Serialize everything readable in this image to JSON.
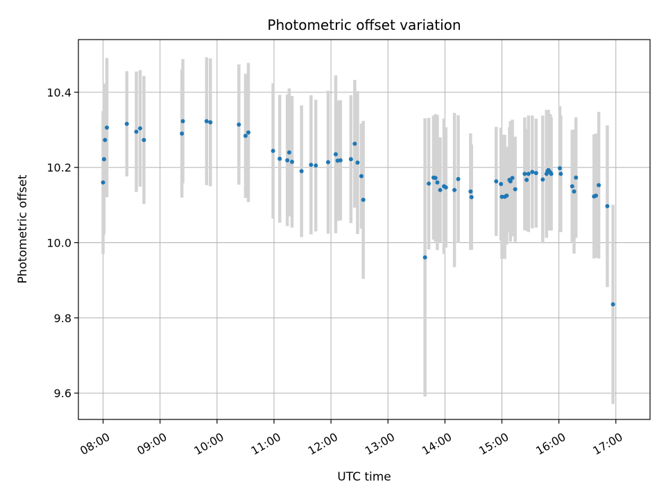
{
  "chart_data": {
    "type": "scatter",
    "title": "Photometric offset variation",
    "xlabel": "UTC time",
    "ylabel": "Photometric offset",
    "xlim": [
      "07:34",
      "17:36"
    ],
    "ylim": [
      9.53,
      10.54
    ],
    "grid": true,
    "x_ticks": [
      "08:00",
      "09:00",
      "10:00",
      "11:00",
      "12:00",
      "13:00",
      "14:00",
      "15:00",
      "16:00",
      "17:00"
    ],
    "y_ticks": [
      9.6,
      9.8,
      10.0,
      10.2,
      10.4
    ],
    "y_tick_labels": [
      "9.6",
      "9.8",
      "10.0",
      "10.2",
      "10.4"
    ],
    "colors": {
      "point": "#1f77b4",
      "errorbar": "#d3d3d3",
      "grid": "#b0b0b0"
    },
    "x": [
      "08:00",
      "08:01",
      "08:02",
      "08:04",
      "08:25",
      "08:35",
      "08:39",
      "08:43",
      "09:23",
      "09:24",
      "09:49",
      "09:53",
      "10:23",
      "10:30",
      "10:33",
      "10:59",
      "11:06",
      "11:14",
      "11:16",
      "11:19",
      "11:29",
      "11:39",
      "11:44",
      "11:57",
      "12:05",
      "12:07",
      "12:10",
      "12:21",
      "12:25",
      "12:28",
      "12:32",
      "12:34",
      "13:39",
      "13:43",
      "13:48",
      "13:50",
      "13:52",
      "13:55",
      "13:59",
      "14:01",
      "14:10",
      "14:14",
      "14:27",
      "14:28",
      "14:54",
      "14:59",
      "15:00",
      "15:03",
      "15:05",
      "15:08",
      "15:09",
      "15:11",
      "15:14",
      "15:24",
      "15:26",
      "15:28",
      "15:32",
      "15:36",
      "15:43",
      "15:47",
      "15:48",
      "15:49",
      "15:51",
      "15:52",
      "16:01",
      "16:02",
      "16:14",
      "16:16",
      "16:18",
      "16:37",
      "16:39",
      "16:42",
      "16:51",
      "16:57"
    ],
    "y": [
      10.16,
      10.222,
      10.273,
      10.306,
      10.316,
      10.295,
      10.304,
      10.273,
      10.29,
      10.323,
      10.323,
      10.32,
      10.314,
      10.284,
      10.293,
      10.244,
      10.223,
      10.219,
      10.24,
      10.215,
      10.19,
      10.207,
      10.205,
      10.214,
      10.235,
      10.218,
      10.219,
      10.222,
      10.263,
      10.213,
      10.177,
      10.114,
      9.961,
      10.157,
      10.173,
      10.172,
      10.16,
      10.14,
      10.15,
      10.147,
      10.14,
      10.169,
      10.136,
      10.121,
      10.163,
      10.156,
      10.122,
      10.122,
      10.125,
      10.167,
      10.163,
      10.172,
      10.142,
      10.183,
      10.167,
      10.183,
      10.188,
      10.185,
      10.168,
      10.183,
      10.19,
      10.193,
      10.187,
      10.183,
      10.198,
      10.183,
      10.15,
      10.136,
      10.173,
      10.123,
      10.125,
      10.153,
      10.097,
      9.836
    ],
    "err": [
      0.19,
      0.2,
      0.15,
      0.185,
      0.14,
      0.16,
      0.155,
      0.17,
      0.17,
      0.165,
      0.17,
      0.17,
      0.16,
      0.165,
      0.185,
      0.18,
      0.17,
      0.175,
      0.17,
      0.175,
      0.175,
      0.185,
      0.175,
      0.19,
      0.21,
      0.16,
      0.16,
      0.17,
      0.17,
      0.19,
      0.14,
      0.21,
      0.37,
      0.175,
      0.165,
      0.17,
      0.18,
      0.14,
      0.18,
      0.16,
      0.205,
      0.17,
      0.155,
      0.14,
      0.145,
      0.15,
      0.165,
      0.165,
      0.13,
      0.14,
      0.16,
      0.155,
      0.14,
      0.15,
      0.135,
      0.155,
      0.15,
      0.145,
      0.17,
      0.17,
      0.15,
      0.16,
      0.155,
      0.15,
      0.165,
      0.155,
      0.15,
      0.165,
      0.16,
      0.165,
      0.165,
      0.195,
      0.215,
      0.265
    ]
  }
}
